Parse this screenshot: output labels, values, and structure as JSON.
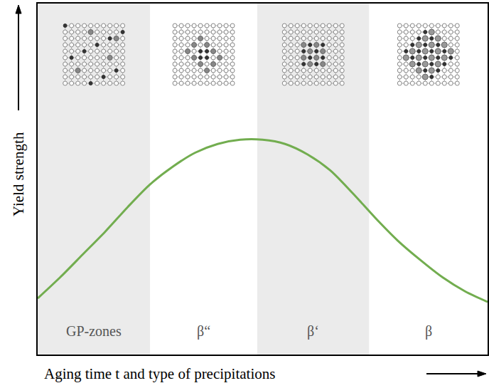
{
  "chart_data": {
    "type": "line",
    "x_label": "Aging time t and type of precipitations",
    "y_label": "Yield strength",
    "x": [
      0,
      5,
      10,
      15,
      20,
      25,
      30,
      35,
      40,
      45,
      50,
      55,
      60,
      65,
      70,
      75,
      80,
      85,
      90,
      95,
      100
    ],
    "values": [
      16,
      22,
      28.5,
      35,
      42,
      48.5,
      53.5,
      57.5,
      60,
      61.2,
      61.2,
      60,
      57,
      52.5,
      46,
      39,
      32.5,
      27,
      22,
      18,
      15
    ],
    "color": "#72ad4f",
    "xlim": [
      0,
      100
    ],
    "ylim": [
      0,
      100
    ],
    "tick_labels": false,
    "grid": false,
    "regions": [
      {
        "label": "GP-zones",
        "start": 0,
        "end": 25,
        "color": "#ebebeb"
      },
      {
        "label": "β“",
        "start": 25,
        "end": 48.8,
        "color": "#ffffff"
      },
      {
        "label": "β‘",
        "start": 48.8,
        "end": 73.7,
        "color": "#ebebeb"
      },
      {
        "label": "β",
        "start": 73.7,
        "end": 100,
        "color": "#ffffff"
      }
    ]
  }
}
